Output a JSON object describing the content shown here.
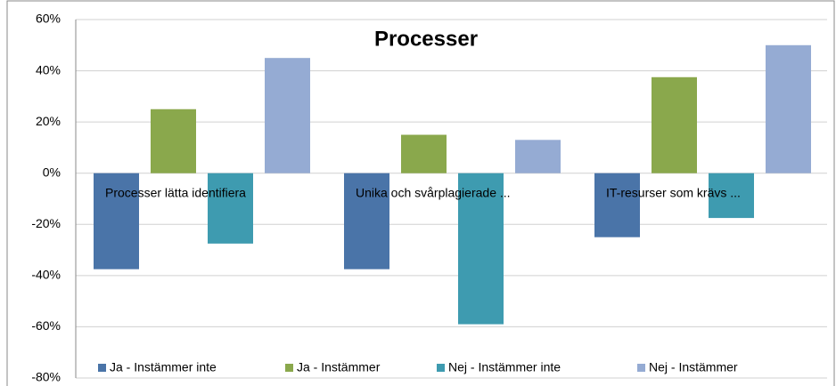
{
  "chart_data": {
    "type": "bar",
    "title": "Processer",
    "categories": [
      "Processer lätta identifiera",
      "Unika och svårplagierade ...",
      "IT-resurser som krävs ..."
    ],
    "series": [
      {
        "name": "Ja - Instämmer inte",
        "color": "#4a74a8",
        "values": [
          -37.5,
          -37.5,
          -25
        ]
      },
      {
        "name": "Ja - Instämmer",
        "color": "#8aa84c",
        "values": [
          25,
          15,
          37.5
        ]
      },
      {
        "name": "Nej - Instämmer inte",
        "color": "#3e9bb0",
        "values": [
          -27.5,
          -59,
          -17.5
        ]
      },
      {
        "name": "Nej - Instämmer",
        "color": "#95abd3",
        "values": [
          45,
          13,
          50
        ]
      }
    ],
    "ylim": [
      -80,
      60
    ],
    "yticks": [
      {
        "value": -80,
        "label": "-80%"
      },
      {
        "value": -60,
        "label": "-60%"
      },
      {
        "value": -40,
        "label": "-40%"
      },
      {
        "value": -20,
        "label": "-20%"
      },
      {
        "value": 0,
        "label": "0%"
      },
      {
        "value": 20,
        "label": "20%"
      },
      {
        "value": 40,
        "label": "40%"
      },
      {
        "value": 60,
        "label": "60%"
      }
    ],
    "grid": true
  }
}
